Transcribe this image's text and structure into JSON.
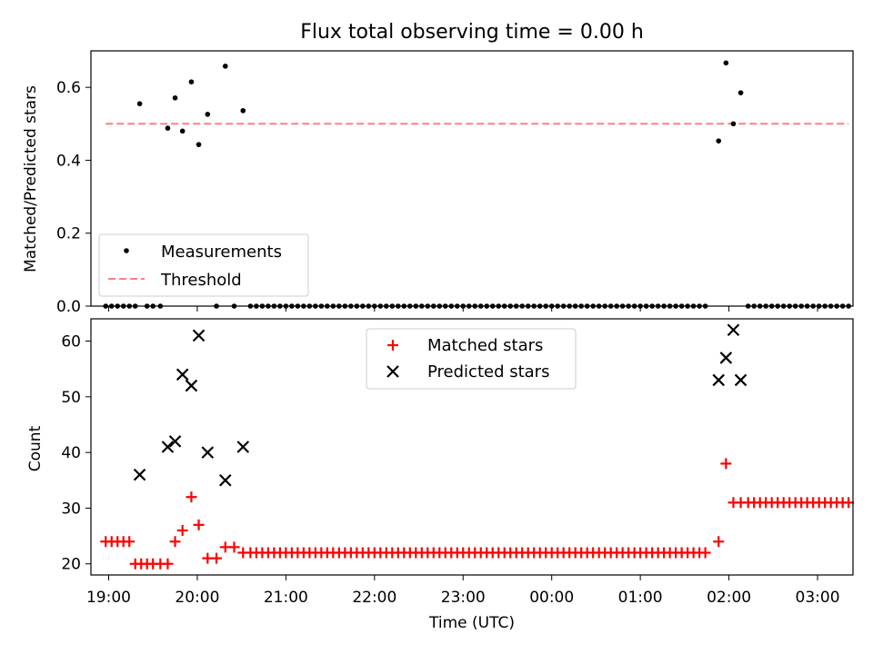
{
  "chart_data": [
    {
      "type": "scatter",
      "title": "Flux total observing time = 0.00 h",
      "ylabel": "Matched/Predicted stars",
      "xlabel": "",
      "xlim": [
        "18:48",
        "03:24"
      ],
      "ylim": [
        0,
        0.7
      ],
      "yticks": [
        "0.0",
        "0.2",
        "0.4",
        "0.6"
      ],
      "yticks_values": [
        0,
        0.2,
        0.4,
        0.6
      ],
      "grid": false,
      "legend_position": "bottom-left",
      "series": [
        {
          "name": "Measurements",
          "kind": "scatter",
          "color": "#000000",
          "points": [
            [
              "18:58",
              0
            ],
            [
              "19:02",
              0
            ],
            [
              "19:06",
              0
            ],
            [
              "19:10",
              0
            ],
            [
              "19:14",
              0
            ],
            [
              "19:18",
              0
            ],
            [
              "19:21",
              0.555
            ],
            [
              "19:26",
              0
            ],
            [
              "19:30",
              0
            ],
            [
              "19:35",
              0
            ],
            [
              "19:40",
              0.488
            ],
            [
              "19:45",
              0.571
            ],
            [
              "19:50",
              0.48
            ],
            [
              "19:56",
              0.615
            ],
            [
              "20:01",
              0.443
            ],
            [
              "20:07",
              0.526
            ],
            [
              "20:13",
              0
            ],
            [
              "20:19",
              0.658
            ],
            [
              "20:25",
              0
            ],
            [
              "20:31",
              0.536
            ],
            [
              "20:36",
              0
            ],
            [
              "20:40",
              0
            ],
            [
              "20:44",
              0
            ],
            [
              "20:48",
              0
            ],
            [
              "20:52",
              0
            ],
            [
              "20:56",
              0
            ],
            [
              "21:00",
              0
            ],
            [
              "21:04",
              0
            ],
            [
              "21:08",
              0
            ],
            [
              "21:12",
              0
            ],
            [
              "21:16",
              0
            ],
            [
              "21:20",
              0
            ],
            [
              "21:24",
              0
            ],
            [
              "21:28",
              0
            ],
            [
              "21:32",
              0
            ],
            [
              "21:36",
              0
            ],
            [
              "21:40",
              0
            ],
            [
              "21:44",
              0
            ],
            [
              "21:48",
              0
            ],
            [
              "21:52",
              0
            ],
            [
              "21:56",
              0
            ],
            [
              "22:00",
              0
            ],
            [
              "22:04",
              0
            ],
            [
              "22:08",
              0
            ],
            [
              "22:12",
              0
            ],
            [
              "22:16",
              0
            ],
            [
              "22:20",
              0
            ],
            [
              "22:24",
              0
            ],
            [
              "22:28",
              0
            ],
            [
              "22:32",
              0
            ],
            [
              "22:36",
              0
            ],
            [
              "22:40",
              0
            ],
            [
              "22:44",
              0
            ],
            [
              "22:48",
              0
            ],
            [
              "22:52",
              0
            ],
            [
              "22:56",
              0
            ],
            [
              "23:00",
              0
            ],
            [
              "23:04",
              0
            ],
            [
              "23:08",
              0
            ],
            [
              "23:12",
              0
            ],
            [
              "23:16",
              0
            ],
            [
              "23:20",
              0
            ],
            [
              "23:24",
              0
            ],
            [
              "23:28",
              0
            ],
            [
              "23:32",
              0
            ],
            [
              "23:36",
              0
            ],
            [
              "23:40",
              0
            ],
            [
              "23:44",
              0
            ],
            [
              "23:48",
              0
            ],
            [
              "23:52",
              0
            ],
            [
              "23:56",
              0
            ],
            [
              "00:00",
              0
            ],
            [
              "00:04",
              0
            ],
            [
              "00:08",
              0
            ],
            [
              "00:12",
              0
            ],
            [
              "00:16",
              0
            ],
            [
              "00:20",
              0
            ],
            [
              "00:24",
              0
            ],
            [
              "00:28",
              0
            ],
            [
              "00:32",
              0
            ],
            [
              "00:36",
              0
            ],
            [
              "00:40",
              0
            ],
            [
              "00:44",
              0
            ],
            [
              "00:48",
              0
            ],
            [
              "00:52",
              0
            ],
            [
              "00:56",
              0
            ],
            [
              "01:00",
              0
            ],
            [
              "01:04",
              0
            ],
            [
              "01:08",
              0
            ],
            [
              "01:12",
              0
            ],
            [
              "01:16",
              0
            ],
            [
              "01:20",
              0
            ],
            [
              "01:24",
              0
            ],
            [
              "01:28",
              0
            ],
            [
              "01:32",
              0
            ],
            [
              "01:36",
              0
            ],
            [
              "01:40",
              0
            ],
            [
              "01:44",
              0
            ],
            [
              "01:53",
              0.453
            ],
            [
              "01:58",
              0.667
            ],
            [
              "02:03",
              0.5
            ],
            [
              "02:08",
              0.585
            ],
            [
              "02:13",
              0
            ],
            [
              "02:17",
              0
            ],
            [
              "02:21",
              0
            ],
            [
              "02:25",
              0
            ],
            [
              "02:29",
              0
            ],
            [
              "02:33",
              0
            ],
            [
              "02:37",
              0
            ],
            [
              "02:41",
              0
            ],
            [
              "02:45",
              0
            ],
            [
              "02:49",
              0
            ],
            [
              "02:53",
              0
            ],
            [
              "02:57",
              0
            ],
            [
              "03:01",
              0
            ],
            [
              "03:05",
              0
            ],
            [
              "03:09",
              0
            ],
            [
              "03:13",
              0
            ],
            [
              "03:17",
              0
            ],
            [
              "03:21",
              0
            ]
          ]
        },
        {
          "name": "Threshold",
          "kind": "line",
          "style": "dashed",
          "color": "#ff7f7f",
          "x": [
            "18:58",
            "03:21"
          ],
          "y": [
            0.5,
            0.5
          ]
        }
      ]
    },
    {
      "type": "scatter",
      "title": "",
      "xlabel": "Time (UTC)",
      "ylabel": "Count",
      "xlim": [
        "18:48",
        "03:24"
      ],
      "ylim": [
        18,
        64
      ],
      "xticks": [
        "19:00",
        "20:00",
        "21:00",
        "22:00",
        "23:00",
        "00:00",
        "01:00",
        "02:00",
        "03:00"
      ],
      "yticks": [
        "20",
        "30",
        "40",
        "50",
        "60"
      ],
      "yticks_values": [
        20,
        30,
        40,
        50,
        60
      ],
      "grid": false,
      "legend_position": "top-center",
      "series": [
        {
          "name": "Matched stars",
          "marker": "+",
          "color": "#ff0000",
          "points": [
            [
              "18:58",
              24
            ],
            [
              "19:02",
              24
            ],
            [
              "19:06",
              24
            ],
            [
              "19:10",
              24
            ],
            [
              "19:14",
              24
            ],
            [
              "19:18",
              20
            ],
            [
              "19:22",
              20
            ],
            [
              "19:26",
              20
            ],
            [
              "19:30",
              20
            ],
            [
              "19:35",
              20
            ],
            [
              "19:40",
              20
            ],
            [
              "19:45",
              24
            ],
            [
              "19:50",
              26
            ],
            [
              "19:56",
              32
            ],
            [
              "20:01",
              27
            ],
            [
              "20:07",
              21
            ],
            [
              "20:13",
              21
            ],
            [
              "20:19",
              23
            ],
            [
              "20:25",
              23
            ],
            [
              "20:31",
              22
            ],
            [
              "20:36",
              22
            ],
            [
              "20:40",
              22
            ],
            [
              "20:44",
              22
            ],
            [
              "20:48",
              22
            ],
            [
              "20:52",
              22
            ],
            [
              "20:56",
              22
            ],
            [
              "21:00",
              22
            ],
            [
              "21:04",
              22
            ],
            [
              "21:08",
              22
            ],
            [
              "21:12",
              22
            ],
            [
              "21:16",
              22
            ],
            [
              "21:20",
              22
            ],
            [
              "21:24",
              22
            ],
            [
              "21:28",
              22
            ],
            [
              "21:32",
              22
            ],
            [
              "21:36",
              22
            ],
            [
              "21:40",
              22
            ],
            [
              "21:44",
              22
            ],
            [
              "21:48",
              22
            ],
            [
              "21:52",
              22
            ],
            [
              "21:56",
              22
            ],
            [
              "22:00",
              22
            ],
            [
              "22:04",
              22
            ],
            [
              "22:08",
              22
            ],
            [
              "22:12",
              22
            ],
            [
              "22:16",
              22
            ],
            [
              "22:20",
              22
            ],
            [
              "22:24",
              22
            ],
            [
              "22:28",
              22
            ],
            [
              "22:32",
              22
            ],
            [
              "22:36",
              22
            ],
            [
              "22:40",
              22
            ],
            [
              "22:44",
              22
            ],
            [
              "22:48",
              22
            ],
            [
              "22:52",
              22
            ],
            [
              "22:56",
              22
            ],
            [
              "23:00",
              22
            ],
            [
              "23:04",
              22
            ],
            [
              "23:08",
              22
            ],
            [
              "23:12",
              22
            ],
            [
              "23:16",
              22
            ],
            [
              "23:20",
              22
            ],
            [
              "23:24",
              22
            ],
            [
              "23:28",
              22
            ],
            [
              "23:32",
              22
            ],
            [
              "23:36",
              22
            ],
            [
              "23:40",
              22
            ],
            [
              "23:44",
              22
            ],
            [
              "23:48",
              22
            ],
            [
              "23:52",
              22
            ],
            [
              "23:56",
              22
            ],
            [
              "00:00",
              22
            ],
            [
              "00:04",
              22
            ],
            [
              "00:08",
              22
            ],
            [
              "00:12",
              22
            ],
            [
              "00:16",
              22
            ],
            [
              "00:20",
              22
            ],
            [
              "00:24",
              22
            ],
            [
              "00:28",
              22
            ],
            [
              "00:32",
              22
            ],
            [
              "00:36",
              22
            ],
            [
              "00:40",
              22
            ],
            [
              "00:44",
              22
            ],
            [
              "00:48",
              22
            ],
            [
              "00:52",
              22
            ],
            [
              "00:56",
              22
            ],
            [
              "01:00",
              22
            ],
            [
              "01:04",
              22
            ],
            [
              "01:08",
              22
            ],
            [
              "01:12",
              22
            ],
            [
              "01:16",
              22
            ],
            [
              "01:20",
              22
            ],
            [
              "01:24",
              22
            ],
            [
              "01:28",
              22
            ],
            [
              "01:32",
              22
            ],
            [
              "01:36",
              22
            ],
            [
              "01:40",
              22
            ],
            [
              "01:44",
              22
            ],
            [
              "01:53",
              24
            ],
            [
              "01:58",
              38
            ],
            [
              "02:03",
              31
            ],
            [
              "02:08",
              31
            ],
            [
              "02:13",
              31
            ],
            [
              "02:17",
              31
            ],
            [
              "02:21",
              31
            ],
            [
              "02:25",
              31
            ],
            [
              "02:29",
              31
            ],
            [
              "02:33",
              31
            ],
            [
              "02:37",
              31
            ],
            [
              "02:41",
              31
            ],
            [
              "02:45",
              31
            ],
            [
              "02:49",
              31
            ],
            [
              "02:53",
              31
            ],
            [
              "02:57",
              31
            ],
            [
              "03:01",
              31
            ],
            [
              "03:05",
              31
            ],
            [
              "03:09",
              31
            ],
            [
              "03:13",
              31
            ],
            [
              "03:17",
              31
            ],
            [
              "03:21",
              31
            ]
          ]
        },
        {
          "name": "Predicted stars",
          "marker": "x",
          "color": "#000000",
          "points": [
            [
              "19:21",
              36
            ],
            [
              "19:40",
              41
            ],
            [
              "19:45",
              42
            ],
            [
              "19:50",
              54
            ],
            [
              "19:56",
              52
            ],
            [
              "20:01",
              61
            ],
            [
              "20:07",
              40
            ],
            [
              "20:19",
              35
            ],
            [
              "20:31",
              41
            ],
            [
              "01:53",
              53
            ],
            [
              "01:58",
              57
            ],
            [
              "02:03",
              62
            ],
            [
              "02:08",
              53
            ]
          ]
        }
      ]
    }
  ]
}
